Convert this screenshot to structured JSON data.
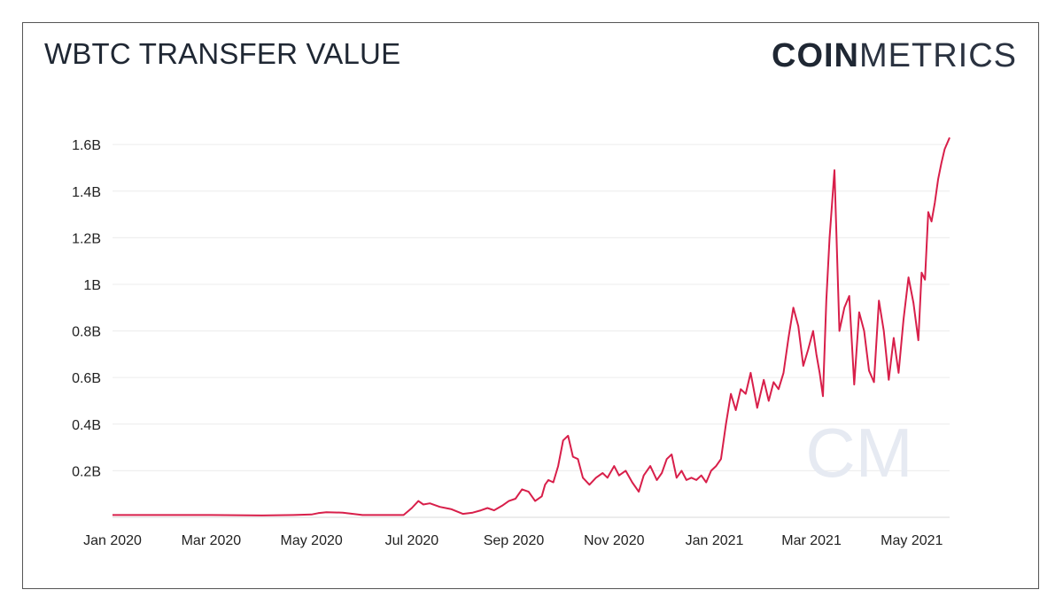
{
  "header": {
    "title": "WBTC TRANSFER VALUE",
    "brand_bold": "COIN",
    "brand_light": "METRICS"
  },
  "watermark": "CM",
  "chart_data": {
    "type": "line",
    "title": "WBTC TRANSFER VALUE",
    "xlabel": "",
    "ylabel": "",
    "x_tick_labels": [
      "Jan 2020",
      "Mar 2020",
      "May 2020",
      "Jul 2020",
      "Sep 2020",
      "Nov 2020",
      "Jan 2021",
      "Mar 2021",
      "May 2021"
    ],
    "y_tick_labels": [
      "0.2B",
      "0.4B",
      "0.6B",
      "0.8B",
      "1B",
      "1.2B",
      "1.4B",
      "1.6B"
    ],
    "y_tick_values": [
      0.2,
      0.4,
      0.6,
      0.8,
      1.0,
      1.2,
      1.4,
      1.6
    ],
    "ylim": [
      0,
      1.65
    ],
    "xlim": [
      "2020-01-01",
      "2021-05-24"
    ],
    "grid": true,
    "line_color": "#d81f4a",
    "series": [
      {
        "x": [
          "2020-01-01",
          "2020-02-01",
          "2020-03-01",
          "2020-04-01",
          "2020-04-20",
          "2020-05-01",
          "2020-05-05",
          "2020-05-10",
          "2020-05-20",
          "2020-06-01",
          "2020-06-15",
          "2020-06-26",
          "2020-07-01",
          "2020-07-05",
          "2020-07-08",
          "2020-07-12",
          "2020-07-18",
          "2020-07-25",
          "2020-08-01",
          "2020-08-07",
          "2020-08-12",
          "2020-08-16",
          "2020-08-20",
          "2020-08-25",
          "2020-08-29",
          "2020-09-02",
          "2020-09-06",
          "2020-09-10",
          "2020-09-14",
          "2020-09-18",
          "2020-09-20",
          "2020-09-22",
          "2020-09-25",
          "2020-09-28",
          "2020-10-01",
          "2020-10-04",
          "2020-10-07",
          "2020-10-10",
          "2020-10-13",
          "2020-10-17",
          "2020-10-21",
          "2020-10-25",
          "2020-10-28",
          "2020-11-01",
          "2020-11-04",
          "2020-11-08",
          "2020-11-12",
          "2020-11-16",
          "2020-11-19",
          "2020-11-23",
          "2020-11-27",
          "2020-11-30",
          "2020-12-03",
          "2020-12-06",
          "2020-12-09",
          "2020-12-12",
          "2020-12-15",
          "2020-12-18",
          "2020-12-21",
          "2020-12-24",
          "2020-12-27",
          "2020-12-30",
          "2021-01-02",
          "2021-01-05",
          "2021-01-08",
          "2021-01-11",
          "2021-01-14",
          "2021-01-17",
          "2021-01-20",
          "2021-01-23",
          "2021-01-27",
          "2021-01-31",
          "2021-02-03",
          "2021-02-06",
          "2021-02-09",
          "2021-02-12",
          "2021-02-15",
          "2021-02-18",
          "2021-02-21",
          "2021-02-24",
          "2021-02-27",
          "2021-03-02",
          "2021-03-04",
          "2021-03-06",
          "2021-03-08",
          "2021-03-10",
          "2021-03-12",
          "2021-03-15",
          "2021-03-18",
          "2021-03-21",
          "2021-03-24",
          "2021-03-27",
          "2021-03-30",
          "2021-04-02",
          "2021-04-05",
          "2021-04-08",
          "2021-04-11",
          "2021-04-14",
          "2021-04-17",
          "2021-04-20",
          "2021-04-23",
          "2021-04-26",
          "2021-04-29",
          "2021-05-02",
          "2021-05-05",
          "2021-05-07",
          "2021-05-09",
          "2021-05-11",
          "2021-05-13",
          "2021-05-15",
          "2021-05-17",
          "2021-05-19",
          "2021-05-21",
          "2021-05-24"
        ],
        "values": [
          0.01,
          0.01,
          0.01,
          0.008,
          0.01,
          0.012,
          0.018,
          0.022,
          0.02,
          0.01,
          0.01,
          0.01,
          0.04,
          0.07,
          0.055,
          0.06,
          0.045,
          0.035,
          0.015,
          0.02,
          0.03,
          0.04,
          0.03,
          0.05,
          0.07,
          0.08,
          0.12,
          0.11,
          0.07,
          0.09,
          0.14,
          0.16,
          0.15,
          0.22,
          0.33,
          0.35,
          0.26,
          0.25,
          0.17,
          0.14,
          0.17,
          0.19,
          0.17,
          0.22,
          0.18,
          0.2,
          0.15,
          0.11,
          0.18,
          0.22,
          0.16,
          0.19,
          0.25,
          0.27,
          0.17,
          0.2,
          0.16,
          0.17,
          0.16,
          0.18,
          0.15,
          0.2,
          0.22,
          0.25,
          0.4,
          0.53,
          0.46,
          0.55,
          0.53,
          0.62,
          0.47,
          0.59,
          0.5,
          0.58,
          0.55,
          0.62,
          0.77,
          0.9,
          0.82,
          0.65,
          0.72,
          0.8,
          0.7,
          0.62,
          0.52,
          0.93,
          1.2,
          1.49,
          0.8,
          0.9,
          0.95,
          0.57,
          0.88,
          0.8,
          0.63,
          0.58,
          0.93,
          0.8,
          0.59,
          0.77,
          0.62,
          0.85,
          1.03,
          0.92,
          0.76,
          1.05,
          1.02,
          1.31,
          1.27,
          1.35,
          1.45,
          1.52,
          1.58,
          1.63
        ]
      }
    ]
  }
}
